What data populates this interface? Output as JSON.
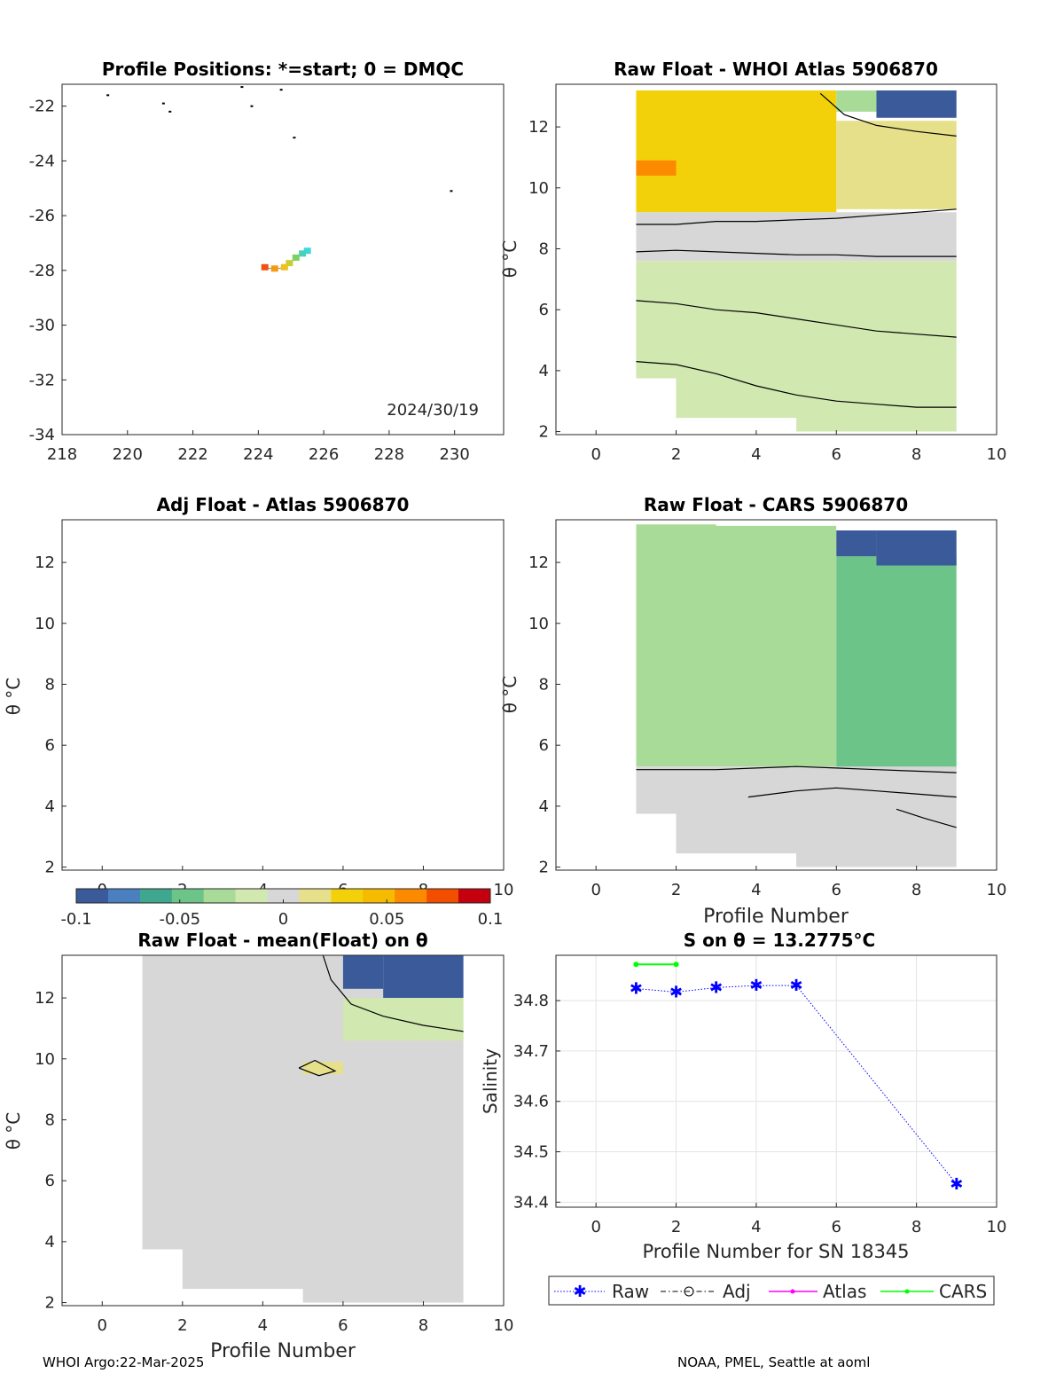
{
  "panels": {
    "map_title": "Profile Positions: *=start; 0 = DMQC",
    "map_date": "2024/30/19",
    "whoi_title": "Raw Float - WHOI Atlas  5906870",
    "adj_title": "Adj Float - Atlas  5906870",
    "cars_title": "Raw Float - CARS  5906870",
    "mean_title": "Raw Float - mean(Float) on θ",
    "s_title": "S on θ = 13.2775°C"
  },
  "labels": {
    "theta_c": "θ °C",
    "profile_number": "Profile Number",
    "profile_number_sn": "Profile Number for SN 18345",
    "salinity": "Salinity"
  },
  "footer": {
    "left": "WHOI Argo:22-Mar-2025",
    "right": "NOAA, PMEL, Seattle at aoml"
  },
  "legend": [
    "Raw",
    "Adj",
    "Atlas",
    "CARS"
  ],
  "colors": {
    "raw": "#0000ff",
    "atlas": "#ff00ff",
    "cars": "#00ff00",
    "bg_grey": "#d8d8d8",
    "colormap": [
      "#3a5a9a",
      "#4a7fc0",
      "#3fa790",
      "#6cc489",
      "#a9db98",
      "#d1e8b0",
      "#d7d7d7",
      "#e6e08a",
      "#f2d10a",
      "#f6ba00",
      "#fb8a00",
      "#f24e00",
      "#c4000f"
    ]
  },
  "chart_data": [
    {
      "id": "map",
      "type": "scatter",
      "title": "Profile Positions: *=start; 0 = DMQC",
      "annotation": "2024/30/19",
      "xlim": [
        218,
        231.5
      ],
      "ylim": [
        -34,
        -21.2
      ],
      "xticks": [
        218,
        220,
        222,
        224,
        226,
        228,
        230
      ],
      "yticks": [
        -22,
        -24,
        -26,
        -28,
        -30,
        -32,
        -34
      ],
      "points": [
        {
          "lon": 225.5,
          "lat": -27.3,
          "color": "#3fd6d9"
        },
        {
          "lon": 225.35,
          "lat": -27.4,
          "color": "#4ad0b8"
        },
        {
          "lon": 225.15,
          "lat": -27.55,
          "color": "#7fd060"
        },
        {
          "lon": 224.95,
          "lat": -27.75,
          "color": "#c8d030"
        },
        {
          "lon": 224.8,
          "lat": -27.9,
          "color": "#f0c020"
        },
        {
          "lon": 224.5,
          "lat": -27.95,
          "color": "#f59a10"
        },
        {
          "lon": 224.2,
          "lat": -27.9,
          "color": "#f05010"
        }
      ],
      "land": [
        {
          "lon": 219.4,
          "lat": -21.6
        },
        {
          "lon": 221.1,
          "lat": -21.9
        },
        {
          "lon": 221.3,
          "lat": -22.2
        },
        {
          "lon": 223.5,
          "lat": -21.3
        },
        {
          "lon": 224.7,
          "lat": -21.4
        },
        {
          "lon": 223.8,
          "lat": -22.0
        },
        {
          "lon": 225.1,
          "lat": -23.15
        },
        {
          "lon": 229.9,
          "lat": -25.1
        }
      ]
    },
    {
      "id": "whoi",
      "type": "heatmap",
      "title": "Raw Float - WHOI Atlas  5906870",
      "xlabel": "",
      "ylabel": "θ °C",
      "xlim": [
        -1,
        10
      ],
      "ylim": [
        1.9,
        13.4
      ],
      "xticks": [
        0,
        2,
        4,
        6,
        8,
        10
      ],
      "yticks": [
        2,
        4,
        6,
        8,
        10,
        12
      ],
      "columns": [
        {
          "profile": 1,
          "tmin": 3.75,
          "tmax": 13.2
        },
        {
          "profile": 2,
          "tmin": 2.45,
          "tmax": 13.2
        },
        {
          "profile": 3,
          "tmin": 2.45,
          "tmax": 13.2
        },
        {
          "profile": 4,
          "tmin": 2.45,
          "tmax": 13.2
        },
        {
          "profile": 5,
          "tmin": 2.0,
          "tmax": 13.2
        },
        {
          "profile": 6,
          "tmin": 2.0,
          "tmax": 13.2
        },
        {
          "profile": 7,
          "tmin": 2.0,
          "tmax": 13.2
        },
        {
          "profile": 8,
          "tmin": 2.0,
          "tmax": 13.2
        }
      ],
      "bands": [
        {
          "p0": 1,
          "p1": 6,
          "t0": 9.2,
          "t1": 13.2,
          "value": 0.04
        },
        {
          "p0": 1,
          "p1": 2,
          "t0": 10.4,
          "t1": 10.9,
          "value": 0.06
        },
        {
          "p0": 6,
          "p1": 9,
          "t0": 9.3,
          "t1": 12.2,
          "value": 0.015
        },
        {
          "p0": 6,
          "p1": 7,
          "t0": 12.5,
          "t1": 13.2,
          "value": -0.04
        },
        {
          "p0": 7,
          "p1": 9,
          "t0": 12.3,
          "t1": 13.2,
          "value": -0.1
        },
        {
          "p0": 1,
          "p1": 9,
          "t0": 7.6,
          "t1": 9.2,
          "value": 0.0
        },
        {
          "p0": 1,
          "p1": 9,
          "t0": 2.0,
          "t1": 7.6,
          "value": -0.02
        }
      ],
      "contours": [
        {
          "profiles": [
            1,
            2,
            3,
            4,
            5,
            6,
            7,
            8,
            9
          ],
          "theta": [
            8.8,
            8.8,
            8.9,
            8.9,
            8.95,
            9.0,
            9.1,
            9.2,
            9.3
          ]
        },
        {
          "profiles": [
            1,
            2,
            3,
            4,
            5,
            6,
            7,
            8,
            9
          ],
          "theta": [
            7.9,
            7.95,
            7.9,
            7.85,
            7.8,
            7.8,
            7.75,
            7.75,
            7.75
          ]
        },
        {
          "profiles": [
            1,
            2,
            3,
            4,
            5,
            6,
            7,
            8,
            9
          ],
          "theta": [
            6.3,
            6.2,
            6.0,
            5.9,
            5.7,
            5.5,
            5.3,
            5.2,
            5.1
          ]
        },
        {
          "profiles": [
            1,
            2,
            3,
            4,
            5,
            6,
            7,
            8,
            9
          ],
          "theta": [
            4.3,
            4.2,
            3.9,
            3.5,
            3.2,
            3.0,
            2.9,
            2.8,
            2.8
          ]
        },
        {
          "profiles": [
            5.6,
            6.2,
            7,
            8,
            9
          ],
          "theta": [
            13.1,
            12.4,
            12.05,
            11.85,
            11.7
          ]
        }
      ]
    },
    {
      "id": "adj",
      "type": "heatmap",
      "title": "Adj Float - Atlas  5906870",
      "ylabel": "θ °C",
      "xlim": [
        -1,
        10
      ],
      "ylim": [
        1.9,
        13.4
      ],
      "xticks": [
        0,
        2,
        4,
        6,
        8,
        10
      ],
      "yticks": [
        2,
        4,
        6,
        8,
        10,
        12
      ],
      "columns": [],
      "bands": [],
      "contours": []
    },
    {
      "id": "cars",
      "type": "heatmap",
      "title": "Raw Float - CARS  5906870",
      "xlabel": "Profile Number",
      "ylabel": "θ °C",
      "xlim": [
        -1,
        10
      ],
      "ylim": [
        1.9,
        13.4
      ],
      "xticks": [
        0,
        2,
        4,
        6,
        8,
        10
      ],
      "yticks": [
        2,
        4,
        6,
        8,
        10,
        12
      ],
      "columns": [
        {
          "profile": 1,
          "tmin": 3.75,
          "tmax": 13.25
        },
        {
          "profile": 2,
          "tmin": 2.45,
          "tmax": 13.25
        },
        {
          "profile": 3,
          "tmin": 2.45,
          "tmax": 13.2
        },
        {
          "profile": 4,
          "tmin": 2.45,
          "tmax": 13.2
        },
        {
          "profile": 5,
          "tmin": 2.0,
          "tmax": 13.2
        },
        {
          "profile": 6,
          "tmin": 2.0,
          "tmax": 13.05
        },
        {
          "profile": 7,
          "tmin": 2.0,
          "tmax": 13.05
        },
        {
          "profile": 8,
          "tmin": 2.0,
          "tmax": 13.05
        }
      ],
      "bands": [
        {
          "p0": 1,
          "p1": 6,
          "t0": 5.3,
          "t1": 13.25,
          "value": -0.04
        },
        {
          "p0": 6,
          "p1": 9,
          "t0": 5.2,
          "t1": 12.2,
          "value": -0.045
        },
        {
          "p0": 6,
          "p1": 7,
          "t0": 12.2,
          "t1": 13.05,
          "value": -0.1
        },
        {
          "p0": 7,
          "p1": 9,
          "t0": 11.9,
          "t1": 13.05,
          "value": -0.1
        },
        {
          "p0": 1,
          "p1": 9,
          "t0": 2.0,
          "t1": 5.3,
          "value": 0.0
        }
      ],
      "contours": [
        {
          "profiles": [
            1,
            2,
            3,
            4,
            5,
            6,
            7,
            8,
            9
          ],
          "theta": [
            5.2,
            5.2,
            5.2,
            5.25,
            5.3,
            5.25,
            5.2,
            5.15,
            5.1
          ]
        },
        {
          "profiles": [
            3.8,
            5,
            6,
            7,
            8,
            9
          ],
          "theta": [
            4.3,
            4.5,
            4.6,
            4.5,
            4.4,
            4.3
          ]
        },
        {
          "profiles": [
            7.5,
            8.2,
            9
          ],
          "theta": [
            3.9,
            3.6,
            3.3
          ]
        }
      ]
    },
    {
      "id": "mean",
      "type": "heatmap",
      "title": "Raw Float - mean(Float) on θ",
      "xlabel": "Profile Number",
      "ylabel": "θ °C",
      "xlim": [
        -1,
        10
      ],
      "ylim": [
        1.9,
        13.4
      ],
      "xticks": [
        0,
        2,
        4,
        6,
        8,
        10
      ],
      "yticks": [
        2,
        4,
        6,
        8,
        10,
        12
      ],
      "columns": [
        {
          "profile": 1,
          "tmin": 3.75,
          "tmax": 13.4
        },
        {
          "profile": 2,
          "tmin": 2.45,
          "tmax": 13.4
        },
        {
          "profile": 3,
          "tmin": 2.45,
          "tmax": 13.4
        },
        {
          "profile": 4,
          "tmin": 2.45,
          "tmax": 13.4
        },
        {
          "profile": 5,
          "tmin": 2.0,
          "tmax": 13.4
        },
        {
          "profile": 6,
          "tmin": 2.0,
          "tmax": 13.4
        },
        {
          "profile": 7,
          "tmin": 2.0,
          "tmax": 13.4
        },
        {
          "profile": 8,
          "tmin": 2.0,
          "tmax": 13.4
        }
      ],
      "bands": [
        {
          "p0": 1,
          "p1": 9,
          "t0": 2.0,
          "t1": 13.4,
          "value": 0.0
        },
        {
          "p0": 6,
          "p1": 7,
          "t0": 12.3,
          "t1": 13.4,
          "value": -0.1
        },
        {
          "p0": 7,
          "p1": 9,
          "t0": 12.0,
          "t1": 13.4,
          "value": -0.1
        },
        {
          "p0": 6,
          "p1": 9,
          "t0": 10.6,
          "t1": 12.0,
          "value": -0.02
        },
        {
          "p0": 5,
          "p1": 6,
          "t0": 9.5,
          "t1": 9.9,
          "value": 0.02
        }
      ],
      "contours": [
        {
          "profiles": [
            5.5,
            5.7,
            6.2,
            7,
            8,
            9
          ],
          "theta": [
            13.4,
            12.6,
            11.8,
            11.4,
            11.1,
            10.9
          ]
        },
        {
          "profiles": [
            4.9,
            5.3,
            5.8,
            5.4,
            4.9
          ],
          "theta": [
            9.7,
            9.95,
            9.6,
            9.45,
            9.7
          ]
        }
      ]
    },
    {
      "id": "salinity",
      "type": "line",
      "title": "S on θ = 13.2775°C",
      "xlabel": "Profile Number for SN 18345",
      "ylabel": "Salinity",
      "xlim": [
        -1,
        10
      ],
      "ylim": [
        34.39,
        34.89
      ],
      "xticks": [
        0,
        2,
        4,
        6,
        8,
        10
      ],
      "yticks": [
        34.4,
        34.5,
        34.6,
        34.7,
        34.8
      ],
      "grid": true,
      "legend": "bottom",
      "series": [
        {
          "name": "Raw",
          "x": [
            1,
            2,
            3,
            4,
            5,
            9
          ],
          "y": [
            34.824,
            34.817,
            34.826,
            34.83,
            34.83,
            34.436
          ],
          "color": "#0000ff"
        },
        {
          "name": "Adj",
          "x": [],
          "y": [],
          "color": "#000000"
        },
        {
          "name": "Atlas",
          "x": [],
          "y": [],
          "color": "#ff00ff"
        },
        {
          "name": "CARS",
          "x": [
            1,
            2
          ],
          "y": [
            34.872,
            34.872
          ],
          "color": "#00ff00"
        }
      ]
    }
  ],
  "colorbar": {
    "ticks": [
      -0.1,
      -0.05,
      0,
      0.05,
      0.1
    ],
    "tick_labels": [
      "-0.1",
      "-0.05",
      "0",
      "0.05",
      "0.1"
    ],
    "range": [
      -0.1,
      0.1
    ]
  }
}
